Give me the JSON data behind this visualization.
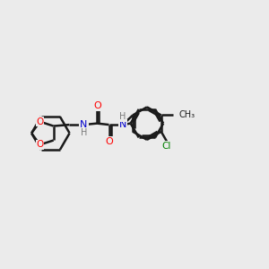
{
  "background_color": "#ebebeb",
  "bond_color": "#1a1a1a",
  "O_color": "#ff0000",
  "N_color": "#0000cc",
  "Cl_color": "#008000",
  "H_color": "#7a7a7a",
  "line_width": 1.8,
  "figsize": [
    3.0,
    3.0
  ],
  "dpi": 100,
  "xlim": [
    0,
    10
  ],
  "ylim": [
    0,
    10
  ]
}
